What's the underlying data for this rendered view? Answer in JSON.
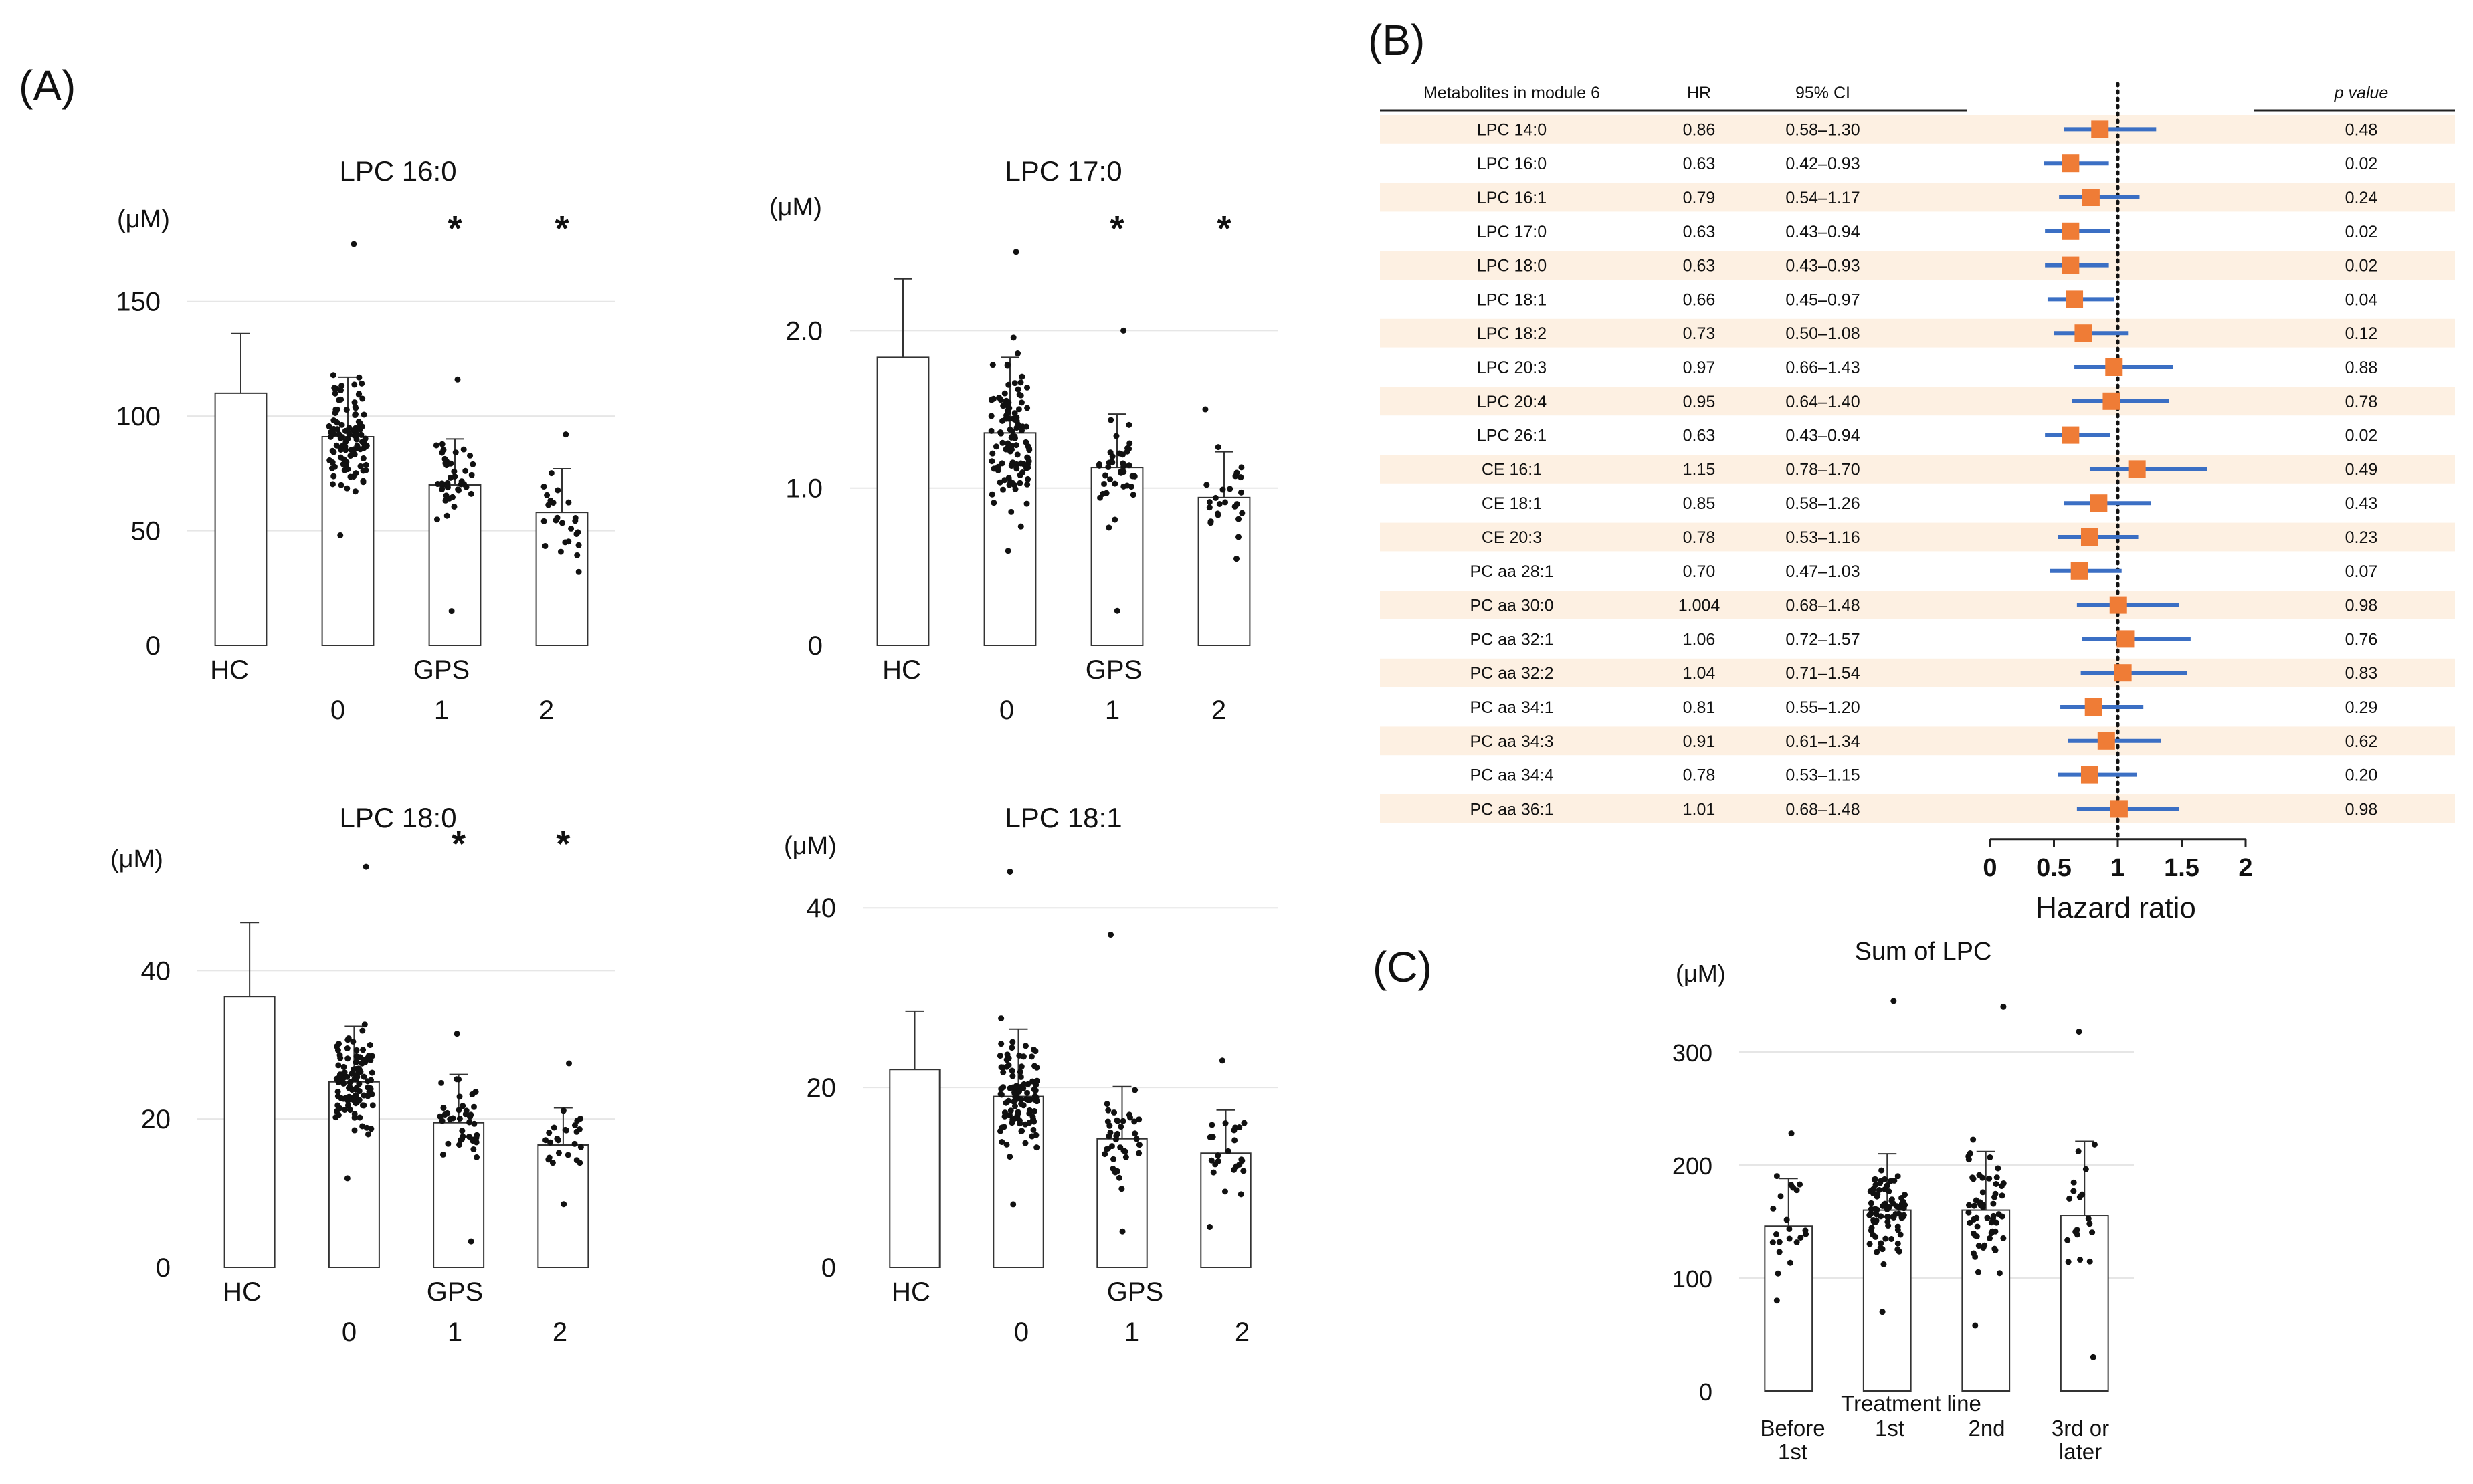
{
  "panels": {
    "A": {
      "label": "(A)"
    },
    "B": {
      "label": "(B)"
    },
    "C": {
      "label": "(C)"
    }
  },
  "colors": {
    "axis": "#222222",
    "grid": "#e6e6e6",
    "bar_fill": "#ffffff",
    "bar_edge": "#333333",
    "point": "#111111",
    "row_band": "#fdf0e2",
    "marker": "#ef7c36",
    "ci_line": "#3b6fc4"
  },
  "chart_data": [
    {
      "id": "lpc160",
      "type": "bar",
      "title": "LPC 16:0",
      "unit": "(μM)",
      "ylim": [
        0,
        175
      ],
      "yticks": [
        0,
        50,
        100,
        150
      ],
      "grid": true,
      "bars": [
        {
          "name": "HC",
          "mean": 110,
          "sd": 26
        },
        {
          "name": "0",
          "mean": 91,
          "sd": 26
        },
        {
          "name": "1",
          "mean": 70,
          "sd": 20
        },
        {
          "name": "2",
          "mean": 58,
          "sd": 19
        }
      ],
      "significant": [
        "1",
        "2"
      ],
      "xlabels": {
        "hc": "HC",
        "group": "GPS",
        "sub": [
          "0",
          "1",
          "2"
        ]
      },
      "point_counts": [
        0,
        110,
        40,
        25
      ],
      "point_range": [
        [
          0,
          0
        ],
        [
          48,
          175
        ],
        [
          15,
          116
        ],
        [
          32,
          92
        ]
      ]
    },
    {
      "id": "lpc170",
      "type": "bar",
      "title": "LPC 17:0",
      "unit": "(μM)",
      "ylim": [
        0,
        2.55
      ],
      "yticks": [
        0,
        1.0,
        2.0
      ],
      "tick_labels": [
        "0",
        "1.0",
        "2.0"
      ],
      "grid": true,
      "bars": [
        {
          "name": "HC",
          "mean": 1.83,
          "sd": 0.5
        },
        {
          "name": "0",
          "mean": 1.35,
          "sd": 0.48
        },
        {
          "name": "1",
          "mean": 1.13,
          "sd": 0.34
        },
        {
          "name": "2",
          "mean": 0.94,
          "sd": 0.29
        }
      ],
      "significant": [
        "1",
        "2"
      ],
      "xlabels": {
        "hc": "HC",
        "group": "GPS",
        "sub": [
          "0",
          "1",
          "2"
        ]
      },
      "point_counts": [
        0,
        110,
        40,
        25
      ],
      "point_range": [
        [
          0,
          0
        ],
        [
          0.6,
          2.5
        ],
        [
          0.22,
          2.0
        ],
        [
          0.55,
          1.5
        ]
      ]
    },
    {
      "id": "lpc180",
      "type": "bar",
      "title": "LPC 18:0",
      "unit": "(μM)",
      "ylim": [
        0,
        55
      ],
      "yticks": [
        0,
        20,
        40
      ],
      "grid": true,
      "bars": [
        {
          "name": "HC",
          "mean": 36.5,
          "sd": 10
        },
        {
          "name": "0",
          "mean": 25,
          "sd": 7.5
        },
        {
          "name": "1",
          "mean": 19.5,
          "sd": 6.5
        },
        {
          "name": "2",
          "mean": 16.5,
          "sd": 5
        }
      ],
      "significant": [
        "1",
        "2"
      ],
      "xlabels": {
        "hc": "HC",
        "group": "GPS",
        "sub": [
          "0",
          "1",
          "2"
        ]
      },
      "point_counts": [
        0,
        110,
        40,
        25
      ],
      "point_range": [
        [
          0,
          0
        ],
        [
          12,
          54
        ],
        [
          3.5,
          31.5
        ],
        [
          8.5,
          27.5
        ]
      ]
    },
    {
      "id": "lpc181",
      "type": "bar",
      "title": "LPC 18:1",
      "unit": "(μM)",
      "ylim": [
        0,
        45
      ],
      "yticks": [
        0,
        20,
        40
      ],
      "grid": true,
      "bars": [
        {
          "name": "HC",
          "mean": 22,
          "sd": 6.5
        },
        {
          "name": "0",
          "mean": 19,
          "sd": 7.5
        },
        {
          "name": "1",
          "mean": 14.3,
          "sd": 5.8
        },
        {
          "name": "2",
          "mean": 12.7,
          "sd": 4.8
        }
      ],
      "significant": [],
      "xlabels": {
        "hc": "HC",
        "group": "GPS",
        "sub": [
          "0",
          "1",
          "2"
        ]
      },
      "point_counts": [
        0,
        110,
        40,
        25
      ],
      "point_range": [
        [
          0,
          0
        ],
        [
          7,
          44
        ],
        [
          4,
          37
        ],
        [
          4.5,
          23
        ]
      ]
    },
    {
      "id": "forest",
      "type": "forest",
      "headers": {
        "metabolite": "Metabolites in module 6",
        "hr": "HR",
        "ci": "95% CI",
        "p": "p value"
      },
      "xlim": [
        0,
        2
      ],
      "xticks": [
        0,
        0.5,
        1,
        1.5,
        2
      ],
      "tick_labels": [
        "0",
        "0.5",
        "1",
        "1.5",
        "2"
      ],
      "xlabel": "Hazard ratio",
      "reference": 1,
      "rows": [
        {
          "name": "LPC 14:0",
          "hr": 0.86,
          "hr_label": "0.86",
          "ci": [
            0.58,
            1.3
          ],
          "ci_label": "0.58–1.30",
          "p": "0.48"
        },
        {
          "name": "LPC 16:0",
          "hr": 0.63,
          "hr_label": "0.63",
          "ci": [
            0.42,
            0.93
          ],
          "ci_label": "0.42–0.93",
          "p": "0.02"
        },
        {
          "name": "LPC 16:1",
          "hr": 0.79,
          "hr_label": "0.79",
          "ci": [
            0.54,
            1.17
          ],
          "ci_label": "0.54–1.17",
          "p": "0.24"
        },
        {
          "name": "LPC 17:0",
          "hr": 0.63,
          "hr_label": "0.63",
          "ci": [
            0.43,
            0.94
          ],
          "ci_label": "0.43–0.94",
          "p": "0.02"
        },
        {
          "name": "LPC 18:0",
          "hr": 0.63,
          "hr_label": "0.63",
          "ci": [
            0.43,
            0.93
          ],
          "ci_label": "0.43–0.93",
          "p": "0.02"
        },
        {
          "name": "LPC 18:1",
          "hr": 0.66,
          "hr_label": "0.66",
          "ci": [
            0.45,
            0.97
          ],
          "ci_label": "0.45–0.97",
          "p": "0.04"
        },
        {
          "name": "LPC 18:2",
          "hr": 0.73,
          "hr_label": "0.73",
          "ci": [
            0.5,
            1.08
          ],
          "ci_label": "0.50–1.08",
          "p": "0.12"
        },
        {
          "name": "LPC 20:3",
          "hr": 0.97,
          "hr_label": "0.97",
          "ci": [
            0.66,
            1.43
          ],
          "ci_label": "0.66–1.43",
          "p": "0.88"
        },
        {
          "name": "LPC 20:4",
          "hr": 0.95,
          "hr_label": "0.95",
          "ci": [
            0.64,
            1.4
          ],
          "ci_label": "0.64–1.40",
          "p": "0.78"
        },
        {
          "name": "LPC 26:1",
          "hr": 0.63,
          "hr_label": "0.63",
          "ci": [
            0.43,
            0.94
          ],
          "ci_label": "0.43–0.94",
          "p": "0.02"
        },
        {
          "name": "CE 16:1",
          "hr": 1.15,
          "hr_label": "1.15",
          "ci": [
            0.78,
            1.7
          ],
          "ci_label": "0.78–1.70",
          "p": "0.49"
        },
        {
          "name": "CE 18:1",
          "hr": 0.85,
          "hr_label": "0.85",
          "ci": [
            0.58,
            1.26
          ],
          "ci_label": "0.58–1.26",
          "p": "0.43"
        },
        {
          "name": "CE 20:3",
          "hr": 0.78,
          "hr_label": "0.78",
          "ci": [
            0.53,
            1.16
          ],
          "ci_label": "0.53–1.16",
          "p": "0.23"
        },
        {
          "name": "PC aa 28:1",
          "hr": 0.7,
          "hr_label": "0.70",
          "ci": [
            0.47,
            1.03
          ],
          "ci_label": "0.47–1.03",
          "p": "0.07"
        },
        {
          "name": "PC aa 30:0",
          "hr": 1.004,
          "hr_label": "1.004",
          "ci": [
            0.68,
            1.48
          ],
          "ci_label": "0.68–1.48",
          "p": "0.98"
        },
        {
          "name": "PC aa 32:1",
          "hr": 1.06,
          "hr_label": "1.06",
          "ci": [
            0.72,
            1.57
          ],
          "ci_label": "0.72–1.57",
          "p": "0.76"
        },
        {
          "name": "PC aa 32:2",
          "hr": 1.04,
          "hr_label": "1.04",
          "ci": [
            0.71,
            1.54
          ],
          "ci_label": "0.71–1.54",
          "p": "0.83"
        },
        {
          "name": "PC aa 34:1",
          "hr": 0.81,
          "hr_label": "0.81",
          "ci": [
            0.55,
            1.2
          ],
          "ci_label": "0.55–1.20",
          "p": "0.29"
        },
        {
          "name": "PC aa 34:3",
          "hr": 0.91,
          "hr_label": "0.91",
          "ci": [
            0.61,
            1.34
          ],
          "ci_label": "0.61–1.34",
          "p": "0.62"
        },
        {
          "name": "PC aa 34:4",
          "hr": 0.78,
          "hr_label": "0.78",
          "ci": [
            0.53,
            1.15
          ],
          "ci_label": "0.53–1.15",
          "p": "0.20"
        },
        {
          "name": "PC aa 36:1",
          "hr": 1.01,
          "hr_label": "1.01",
          "ci": [
            0.68,
            1.48
          ],
          "ci_label": "0.68–1.48",
          "p": "0.98"
        }
      ]
    },
    {
      "id": "sumlpc",
      "type": "bar",
      "title": "Sum of LPC",
      "unit": "(μM)",
      "ylim": [
        0,
        355
      ],
      "yticks": [
        0,
        100,
        200,
        300
      ],
      "grid": true,
      "bars": [
        {
          "name": "Before 1st",
          "mean": 146,
          "sd": 42
        },
        {
          "name": "1st",
          "mean": 160,
          "sd": 50
        },
        {
          "name": "2nd",
          "mean": 160,
          "sd": 52
        },
        {
          "name": "3rd or later",
          "mean": 155,
          "sd": 66
        }
      ],
      "significant": [],
      "xlabels": {
        "group": "Treatment line",
        "sub": [
          "Before",
          "1st",
          "1st",
          "2nd",
          "3rd or",
          "later"
        ]
      },
      "point_counts": [
        22,
        80,
        60,
        20
      ],
      "point_range": [
        [
          80,
          228
        ],
        [
          70,
          345
        ],
        [
          58,
          340
        ],
        [
          30,
          318
        ]
      ]
    }
  ]
}
